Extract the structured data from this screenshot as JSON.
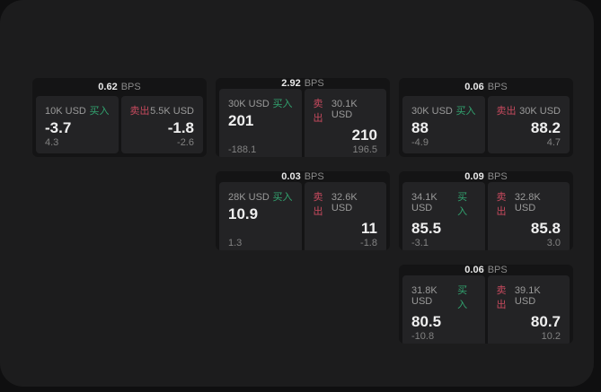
{
  "theme": {
    "page_bg": "#0f0f10",
    "surface_bg": "#1c1c1d",
    "card_bg": "#141415",
    "panel_bg": "#232325",
    "buy_color": "#32a470",
    "sell_color": "#c74a5e"
  },
  "labels": {
    "bps": "BPS",
    "buy": "买入",
    "sell": "卖出"
  },
  "cards": [
    {
      "col": 1,
      "row": 1,
      "bps": "0.62",
      "buy": {
        "amount": "10K USD",
        "value": "-3.7",
        "sub": "4.3"
      },
      "sell": {
        "amount": "5.5K USD",
        "value": "-1.8",
        "sub": "-2.6"
      }
    },
    {
      "col": 2,
      "row": 1,
      "bps": "2.92",
      "buy": {
        "amount": "30K USD",
        "value": "201",
        "sub": "-188.1"
      },
      "sell": {
        "amount": "30.1K USD",
        "value": "210",
        "sub": "196.5"
      }
    },
    {
      "col": 3,
      "row": 1,
      "bps": "0.06",
      "buy": {
        "amount": "30K USD",
        "value": "88",
        "sub": "-4.9"
      },
      "sell": {
        "amount": "30K USD",
        "value": "88.2",
        "sub": "4.7"
      }
    },
    {
      "col": 2,
      "row": 2,
      "bps": "0.03",
      "buy": {
        "amount": "28K USD",
        "value": "10.9",
        "sub": "1.3"
      },
      "sell": {
        "amount": "32.6K USD",
        "value": "11",
        "sub": "-1.8"
      }
    },
    {
      "col": 3,
      "row": 2,
      "bps": "0.09",
      "buy": {
        "amount": "34.1K USD",
        "value": "85.5",
        "sub": "-3.1"
      },
      "sell": {
        "amount": "32.8K USD",
        "value": "85.8",
        "sub": "3.0"
      }
    },
    {
      "col": 3,
      "row": 3,
      "bps": "0.06",
      "buy": {
        "amount": "31.8K USD",
        "value": "80.5",
        "sub": "-10.8"
      },
      "sell": {
        "amount": "39.1K USD",
        "value": "80.7",
        "sub": "10.2"
      }
    }
  ]
}
